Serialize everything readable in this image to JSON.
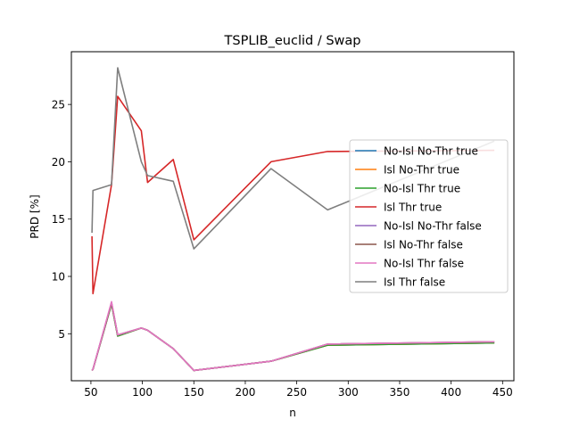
{
  "chart_data": {
    "type": "line",
    "title": "TSPLIB_euclid / Swap",
    "xlabel": "n",
    "ylabel": "PRD [%]",
    "xlim": [
      31,
      461
    ],
    "ylim": [
      0.9,
      29.6
    ],
    "xticks": [
      50,
      100,
      150,
      200,
      250,
      300,
      350,
      400,
      450
    ],
    "yticks": [
      5,
      10,
      15,
      20,
      25
    ],
    "grid": false,
    "legend_position": "center-right",
    "series": [
      {
        "name": "No-Isl No-Thr true",
        "color": "#1f77b4",
        "x": [
          51,
          52,
          70,
          76,
          99,
          105,
          130,
          150,
          225,
          280,
          442
        ],
        "y": [
          1.8,
          1.9,
          7.6,
          4.8,
          5.5,
          5.3,
          3.7,
          1.8,
          2.6,
          4.0,
          4.2
        ]
      },
      {
        "name": "Isl No-Thr true",
        "color": "#ff7f0e",
        "x": [
          51,
          52,
          70,
          76,
          99,
          105,
          130,
          150,
          225,
          280,
          442
        ],
        "y": [
          1.8,
          1.9,
          7.6,
          4.8,
          5.5,
          5.3,
          3.7,
          1.8,
          2.6,
          4.0,
          4.2
        ]
      },
      {
        "name": "No-Isl Thr true",
        "color": "#2ca02c",
        "x": [
          51,
          52,
          70,
          76,
          99,
          105,
          130,
          150,
          225,
          280,
          442
        ],
        "y": [
          1.8,
          1.9,
          7.6,
          4.8,
          5.5,
          5.3,
          3.7,
          1.8,
          2.6,
          4.0,
          4.2
        ]
      },
      {
        "name": "Isl Thr true",
        "color": "#d62728",
        "x": [
          51,
          52,
          70,
          76,
          99,
          105,
          130,
          150,
          225,
          280,
          442
        ],
        "y": [
          13.5,
          8.5,
          18.0,
          25.7,
          22.7,
          18.2,
          20.2,
          13.2,
          20.0,
          20.9,
          21.0
        ]
      },
      {
        "name": "No-Isl No-Thr false",
        "color": "#9467bd",
        "x": [
          51,
          52,
          70,
          76,
          99,
          105,
          130,
          150,
          225,
          280,
          442
        ],
        "y": [
          1.8,
          1.9,
          7.7,
          4.9,
          5.5,
          5.3,
          3.7,
          1.8,
          2.6,
          4.1,
          4.3
        ]
      },
      {
        "name": "Isl No-Thr false",
        "color": "#8c564b",
        "x": [
          51,
          52,
          70,
          76,
          99,
          105,
          130,
          150,
          225,
          280,
          442
        ],
        "y": [
          1.8,
          1.9,
          7.7,
          4.9,
          5.5,
          5.3,
          3.7,
          1.8,
          2.6,
          4.1,
          4.3
        ]
      },
      {
        "name": "No-Isl Thr false",
        "color": "#e377c2",
        "x": [
          51,
          52,
          70,
          76,
          99,
          105,
          130,
          150,
          225,
          280,
          442
        ],
        "y": [
          1.8,
          1.9,
          7.8,
          4.9,
          5.5,
          5.3,
          3.7,
          1.8,
          2.6,
          4.1,
          4.3
        ]
      },
      {
        "name": "Isl Thr false",
        "color": "#7f7f7f",
        "x": [
          51,
          52,
          70,
          76,
          99,
          105,
          130,
          150,
          225,
          280,
          442
        ],
        "y": [
          13.8,
          17.5,
          18.0,
          28.2,
          20.0,
          18.8,
          18.3,
          12.4,
          19.4,
          15.8,
          21.8
        ]
      }
    ]
  }
}
